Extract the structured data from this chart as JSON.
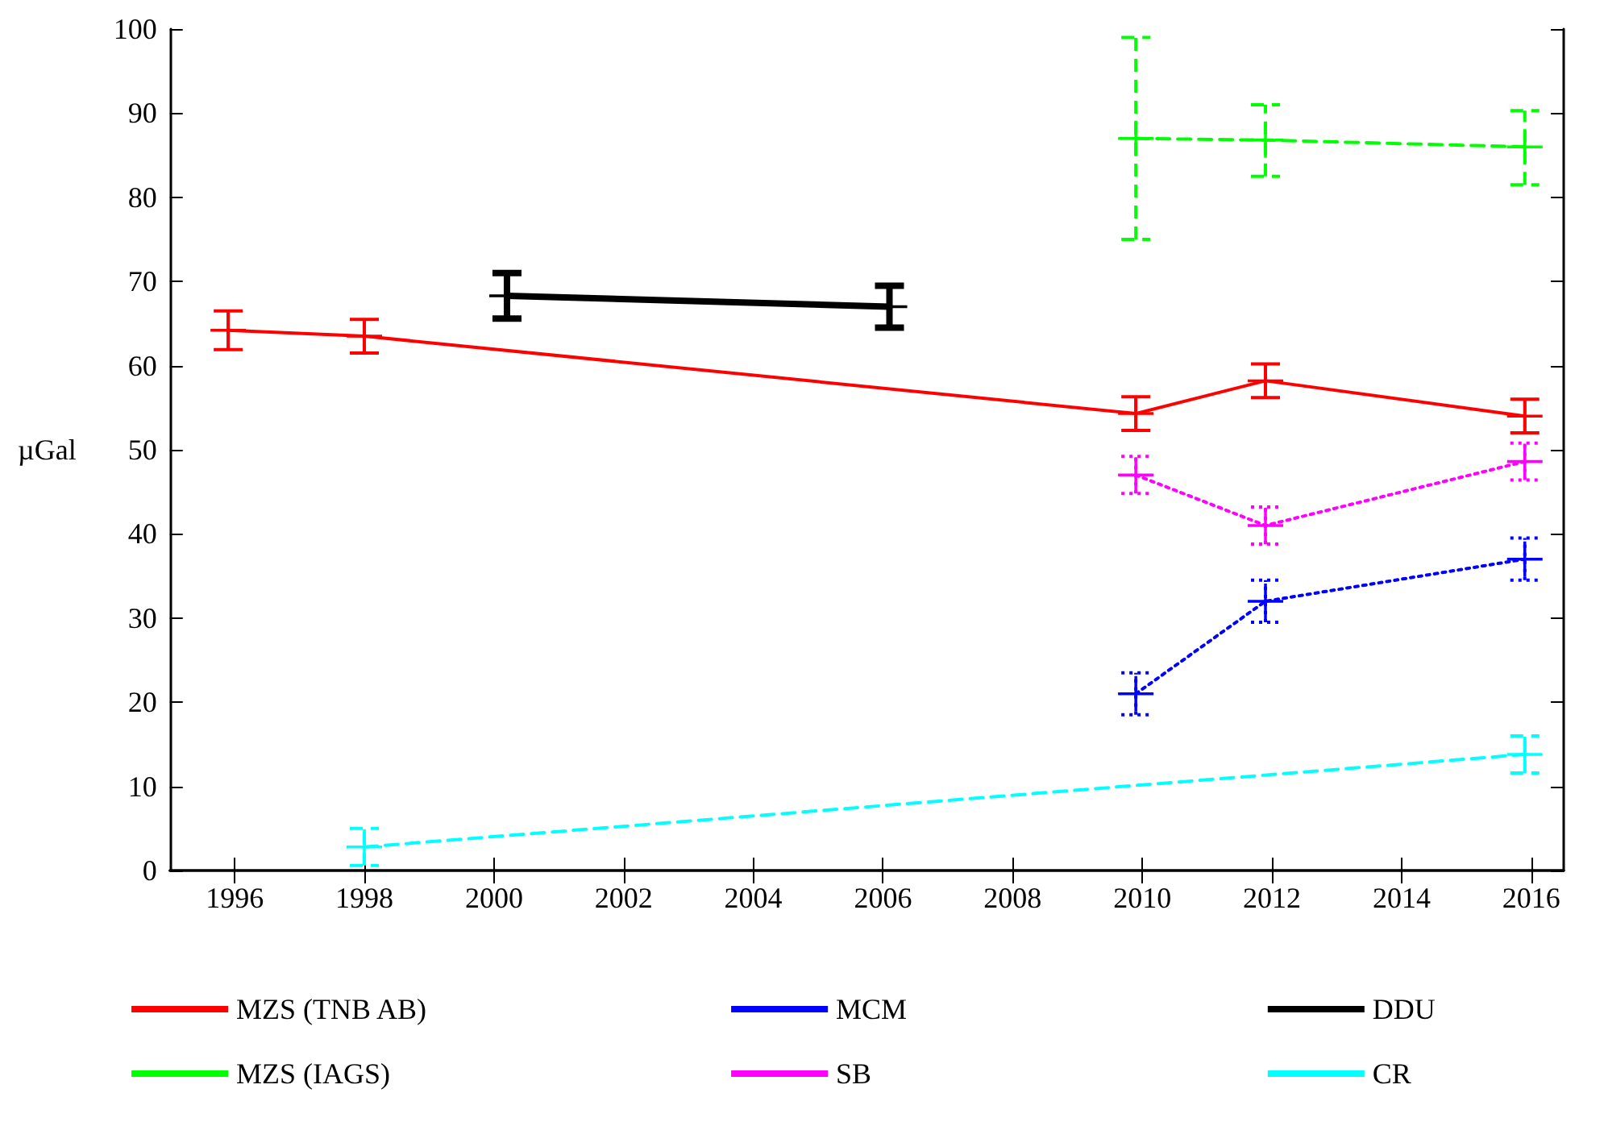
{
  "chart_data": {
    "type": "line",
    "ylabel": "µGal",
    "xlim": [
      1995,
      2016.5
    ],
    "xticks": [
      1996,
      1998,
      2000,
      2002,
      2004,
      2006,
      2008,
      2010,
      2012,
      2014,
      2016
    ],
    "ylim": [
      0,
      100
    ],
    "yticks": [
      0,
      10,
      20,
      30,
      40,
      50,
      60,
      70,
      80,
      90,
      100
    ],
    "grid": false,
    "legend": "bottom",
    "marker": "cross",
    "series": [
      {
        "name": "MZS (TNB AB)",
        "color": "#ff0000",
        "line_style": "solid",
        "x": [
          1995.9,
          1998,
          2009.9,
          2011.9,
          2015.9
        ],
        "values": [
          64.2,
          63.5,
          54.3,
          58.2,
          54
        ],
        "errors": [
          2.3,
          2,
          2,
          2,
          2
        ]
      },
      {
        "name": "MZS (IAGS)",
        "color": "#00ff00",
        "line_style": "dashed",
        "x": [
          2009.9,
          2011.9,
          2015.9
        ],
        "values": [
          87,
          86.8,
          86
        ],
        "errors": [
          [
            75,
            99
          ],
          [
            82.5,
            91
          ],
          [
            81.5,
            90.3
          ]
        ]
      },
      {
        "name": "MCM",
        "color": "#0000ff",
        "line_style": "dotted",
        "x": [
          2009.9,
          2011.9,
          2015.9
        ],
        "values": [
          21,
          32,
          37
        ],
        "errors": [
          2.5,
          2.5,
          2.5
        ]
      },
      {
        "name": "SB",
        "color": "#ff00ff",
        "line_style": "dotted",
        "x": [
          2009.9,
          2011.9,
          2015.9
        ],
        "values": [
          47,
          41,
          48.6
        ],
        "errors": [
          2.2,
          2.2,
          2.2
        ]
      },
      {
        "name": "DDU",
        "color": "#000000",
        "line_style": "solid",
        "x": [
          2000.2,
          2006.1
        ],
        "values": [
          68.3,
          67
        ],
        "errors": [
          2.7,
          2.5
        ]
      },
      {
        "name": "CR",
        "color": "#00ffff",
        "line_style": "dashed",
        "x": [
          1998,
          2015.9
        ],
        "values": [
          2.8,
          13.8
        ],
        "errors": [
          2.2,
          2.2
        ]
      }
    ]
  }
}
